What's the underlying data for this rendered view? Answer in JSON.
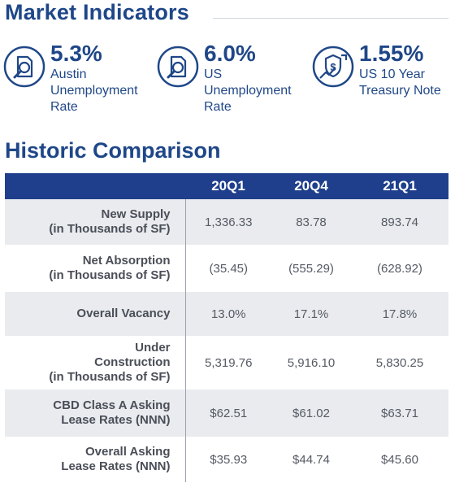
{
  "market_indicators": {
    "title": "Market Indicators",
    "items": [
      {
        "value": "5.3%",
        "label": "Austin\nUnemployment\nRate",
        "icon": "magnifier-document-icon"
      },
      {
        "value": "6.0%",
        "label": "US\nUnemployment\nRate",
        "icon": "magnifier-document-icon"
      },
      {
        "value": "1.55%",
        "label": "US 10 Year\nTreasury Note",
        "icon": "money-shield-trend-icon"
      }
    ]
  },
  "historic_comparison": {
    "title": "Historic Comparison",
    "columns": [
      "",
      "20Q1",
      "20Q4",
      "21Q1"
    ],
    "rows": [
      {
        "label": "New Supply\n(in Thousands of SF)",
        "values": [
          "1,336.33",
          "83.78",
          "893.74"
        ]
      },
      {
        "label": "Net Absorption\n(in Thousands of SF)",
        "values": [
          "(35.45)",
          "(555.29)",
          "(628.92)"
        ]
      },
      {
        "label": "Overall Vacancy",
        "values": [
          "13.0%",
          "17.1%",
          "17.8%"
        ]
      },
      {
        "label": "Under\nConstruction\n(in Thousands of SF)",
        "values": [
          "5,319.76",
          "5,916.10",
          "5,830.25"
        ]
      },
      {
        "label": "CBD Class A Asking\nLease Rates (NNN)",
        "values": [
          "$62.51",
          "$61.02",
          "$63.71"
        ]
      },
      {
        "label": "Overall Asking\nLease Rates (NNN)",
        "values": [
          "$35.93",
          "$44.74",
          "$45.60"
        ]
      }
    ]
  },
  "colors": {
    "brand": "#1f4788",
    "header_bg": "#1f3f8c",
    "row_shade": "#e9ebef"
  }
}
